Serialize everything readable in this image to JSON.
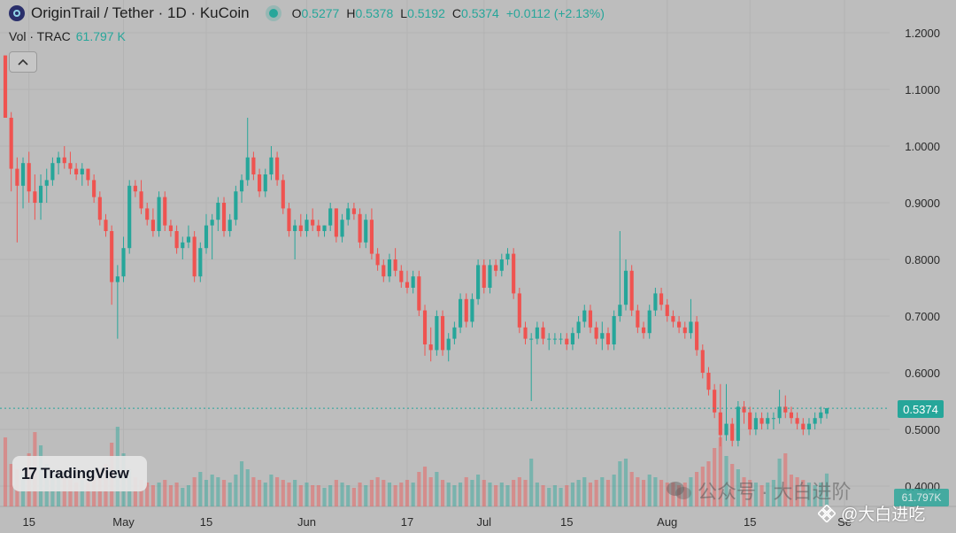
{
  "header": {
    "symbol_title": "OriginTrail / Tether · 1D · KuCoin",
    "ohlc": {
      "o_label": "O",
      "o_value": "0.5277",
      "h_label": "H",
      "h_value": "0.5378",
      "l_label": "L",
      "l_value": "0.5192",
      "c_label": "C",
      "c_value": "0.5374",
      "change": "+0.0112 (+2.13%)"
    }
  },
  "volume_legend": {
    "label": "Vol · TRAC",
    "value": "61.797 K"
  },
  "last_price_label": "0.5374",
  "last_volume_label": "61.797K",
  "logo_text": "TradingView",
  "watermarks": {
    "wechat": "公众号 · 大白进阶",
    "author": "@大白进吃"
  },
  "colors": {
    "up": "#26a69a",
    "down": "#ef5350",
    "background": "#bdbdbd",
    "grid": "#b3b3b3"
  },
  "icons": {
    "collapse": "chevron-up-icon",
    "symbol": "origintrail-logo-icon",
    "wechat": "wechat-icon",
    "logo": "binance-logo-icon"
  },
  "chart_data": {
    "type": "candlestick",
    "y_ticks": [
      "1.2000",
      "1.1000",
      "1.0000",
      "0.9000",
      "0.8000",
      "0.7000",
      "0.6000",
      "0.5000",
      "0.4000"
    ],
    "ylim": [
      0.385,
      1.215
    ],
    "x_ticks": [
      {
        "label": "15",
        "index": 4
      },
      {
        "label": "May",
        "index": 20
      },
      {
        "label": "15",
        "index": 34
      },
      {
        "label": "Jun",
        "index": 51
      },
      {
        "label": "17",
        "index": 68
      },
      {
        "label": "Jul",
        "index": 81
      },
      {
        "label": "15",
        "index": 95
      },
      {
        "label": "Aug",
        "index": 112
      },
      {
        "label": "15",
        "index": 126
      },
      {
        "label": "Se",
        "index": 142
      }
    ],
    "volume_max": 150,
    "candles": [
      [
        1.16,
        1.16,
        1.05,
        1.05,
        130
      ],
      [
        1.05,
        1.06,
        0.92,
        0.96,
        80
      ],
      [
        0.96,
        0.98,
        0.83,
        0.93,
        70
      ],
      [
        0.93,
        0.98,
        0.89,
        0.97,
        60
      ],
      [
        0.97,
        0.99,
        0.9,
        0.92,
        100
      ],
      [
        0.92,
        0.95,
        0.87,
        0.9,
        140
      ],
      [
        0.9,
        0.95,
        0.87,
        0.93,
        115
      ],
      [
        0.93,
        0.96,
        0.9,
        0.94,
        80
      ],
      [
        0.94,
        0.98,
        0.93,
        0.97,
        70
      ],
      [
        0.97,
        0.99,
        0.95,
        0.98,
        60
      ],
      [
        0.98,
        1.0,
        0.96,
        0.97,
        55
      ],
      [
        0.97,
        0.99,
        0.95,
        0.96,
        50
      ],
      [
        0.96,
        0.97,
        0.94,
        0.95,
        45
      ],
      [
        0.95,
        0.97,
        0.93,
        0.96,
        50
      ],
      [
        0.96,
        0.96,
        0.93,
        0.94,
        45
      ],
      [
        0.94,
        0.95,
        0.9,
        0.91,
        55
      ],
      [
        0.91,
        0.92,
        0.86,
        0.87,
        70
      ],
      [
        0.87,
        0.88,
        0.84,
        0.85,
        80
      ],
      [
        0.85,
        0.86,
        0.72,
        0.76,
        120
      ],
      [
        0.76,
        0.79,
        0.66,
        0.77,
        150
      ],
      [
        0.77,
        0.84,
        0.76,
        0.82,
        100
      ],
      [
        0.82,
        0.94,
        0.81,
        0.93,
        70
      ],
      [
        0.93,
        0.94,
        0.91,
        0.92,
        55
      ],
      [
        0.92,
        0.94,
        0.88,
        0.89,
        50
      ],
      [
        0.89,
        0.9,
        0.86,
        0.87,
        45
      ],
      [
        0.87,
        0.89,
        0.84,
        0.85,
        40
      ],
      [
        0.85,
        0.92,
        0.84,
        0.91,
        45
      ],
      [
        0.91,
        0.92,
        0.85,
        0.86,
        50
      ],
      [
        0.86,
        0.87,
        0.84,
        0.85,
        40
      ],
      [
        0.85,
        0.86,
        0.81,
        0.82,
        45
      ],
      [
        0.82,
        0.84,
        0.8,
        0.83,
        35
      ],
      [
        0.83,
        0.86,
        0.82,
        0.84,
        40
      ],
      [
        0.84,
        0.85,
        0.76,
        0.77,
        55
      ],
      [
        0.77,
        0.83,
        0.76,
        0.82,
        65
      ],
      [
        0.82,
        0.88,
        0.81,
        0.86,
        50
      ],
      [
        0.86,
        0.88,
        0.8,
        0.87,
        60
      ],
      [
        0.87,
        0.91,
        0.85,
        0.9,
        55
      ],
      [
        0.9,
        0.91,
        0.84,
        0.85,
        50
      ],
      [
        0.85,
        0.88,
        0.84,
        0.87,
        45
      ],
      [
        0.87,
        0.93,
        0.86,
        0.92,
        60
      ],
      [
        0.92,
        0.95,
        0.9,
        0.94,
        85
      ],
      [
        0.94,
        1.05,
        0.93,
        0.98,
        70
      ],
      [
        0.98,
        0.99,
        0.94,
        0.95,
        55
      ],
      [
        0.95,
        0.96,
        0.91,
        0.92,
        50
      ],
      [
        0.92,
        0.96,
        0.91,
        0.95,
        45
      ],
      [
        0.95,
        1.0,
        0.94,
        0.98,
        60
      ],
      [
        0.98,
        0.99,
        0.93,
        0.94,
        55
      ],
      [
        0.94,
        0.95,
        0.88,
        0.89,
        50
      ],
      [
        0.89,
        0.9,
        0.84,
        0.85,
        45
      ],
      [
        0.85,
        0.87,
        0.8,
        0.86,
        50
      ],
      [
        0.86,
        0.88,
        0.84,
        0.85,
        40
      ],
      [
        0.85,
        0.88,
        0.84,
        0.87,
        45
      ],
      [
        0.87,
        0.89,
        0.85,
        0.86,
        40
      ],
      [
        0.86,
        0.87,
        0.84,
        0.85,
        40
      ],
      [
        0.85,
        0.86,
        0.84,
        0.86,
        35
      ],
      [
        0.86,
        0.9,
        0.85,
        0.89,
        40
      ],
      [
        0.89,
        0.89,
        0.83,
        0.84,
        50
      ],
      [
        0.84,
        0.88,
        0.83,
        0.87,
        45
      ],
      [
        0.87,
        0.9,
        0.86,
        0.89,
        40
      ],
      [
        0.89,
        0.9,
        0.87,
        0.88,
        35
      ],
      [
        0.88,
        0.89,
        0.82,
        0.83,
        45
      ],
      [
        0.83,
        0.88,
        0.82,
        0.87,
        40
      ],
      [
        0.87,
        0.89,
        0.8,
        0.81,
        50
      ],
      [
        0.81,
        0.82,
        0.78,
        0.79,
        55
      ],
      [
        0.79,
        0.8,
        0.76,
        0.77,
        50
      ],
      [
        0.77,
        0.81,
        0.76,
        0.8,
        45
      ],
      [
        0.8,
        0.82,
        0.77,
        0.78,
        40
      ],
      [
        0.78,
        0.79,
        0.75,
        0.76,
        45
      ],
      [
        0.76,
        0.78,
        0.74,
        0.75,
        50
      ],
      [
        0.75,
        0.78,
        0.74,
        0.77,
        45
      ],
      [
        0.77,
        0.78,
        0.7,
        0.71,
        65
      ],
      [
        0.71,
        0.72,
        0.63,
        0.65,
        75
      ],
      [
        0.65,
        0.68,
        0.62,
        0.64,
        55
      ],
      [
        0.64,
        0.71,
        0.63,
        0.7,
        65
      ],
      [
        0.7,
        0.71,
        0.63,
        0.64,
        50
      ],
      [
        0.64,
        0.67,
        0.62,
        0.66,
        45
      ],
      [
        0.66,
        0.69,
        0.65,
        0.68,
        40
      ],
      [
        0.68,
        0.74,
        0.67,
        0.73,
        45
      ],
      [
        0.73,
        0.74,
        0.68,
        0.69,
        55
      ],
      [
        0.69,
        0.74,
        0.68,
        0.73,
        50
      ],
      [
        0.73,
        0.8,
        0.72,
        0.79,
        60
      ],
      [
        0.79,
        0.8,
        0.74,
        0.75,
        50
      ],
      [
        0.75,
        0.8,
        0.74,
        0.79,
        45
      ],
      [
        0.79,
        0.8,
        0.77,
        0.78,
        40
      ],
      [
        0.78,
        0.81,
        0.77,
        0.8,
        45
      ],
      [
        0.8,
        0.82,
        0.79,
        0.81,
        40
      ],
      [
        0.81,
        0.82,
        0.73,
        0.74,
        50
      ],
      [
        0.74,
        0.75,
        0.67,
        0.68,
        55
      ],
      [
        0.68,
        0.69,
        0.65,
        0.66,
        50
      ],
      [
        0.66,
        0.67,
        0.55,
        0.66,
        90
      ],
      [
        0.66,
        0.69,
        0.65,
        0.68,
        45
      ],
      [
        0.68,
        0.69,
        0.65,
        0.66,
        40
      ],
      [
        0.66,
        0.67,
        0.64,
        0.66,
        35
      ],
      [
        0.66,
        0.67,
        0.65,
        0.66,
        40
      ],
      [
        0.66,
        0.67,
        0.65,
        0.66,
        35
      ],
      [
        0.66,
        0.67,
        0.64,
        0.65,
        40
      ],
      [
        0.65,
        0.68,
        0.64,
        0.67,
        45
      ],
      [
        0.67,
        0.7,
        0.66,
        0.69,
        50
      ],
      [
        0.69,
        0.72,
        0.68,
        0.71,
        55
      ],
      [
        0.71,
        0.72,
        0.67,
        0.68,
        45
      ],
      [
        0.68,
        0.69,
        0.65,
        0.66,
        50
      ],
      [
        0.66,
        0.69,
        0.64,
        0.67,
        55
      ],
      [
        0.67,
        0.68,
        0.64,
        0.65,
        50
      ],
      [
        0.65,
        0.71,
        0.64,
        0.7,
        60
      ],
      [
        0.7,
        0.85,
        0.69,
        0.72,
        85
      ],
      [
        0.72,
        0.8,
        0.71,
        0.78,
        90
      ],
      [
        0.78,
        0.79,
        0.7,
        0.71,
        65
      ],
      [
        0.71,
        0.72,
        0.67,
        0.68,
        55
      ],
      [
        0.68,
        0.69,
        0.66,
        0.67,
        50
      ],
      [
        0.67,
        0.72,
        0.66,
        0.71,
        60
      ],
      [
        0.71,
        0.75,
        0.7,
        0.74,
        55
      ],
      [
        0.74,
        0.75,
        0.71,
        0.72,
        50
      ],
      [
        0.72,
        0.73,
        0.69,
        0.7,
        45
      ],
      [
        0.7,
        0.71,
        0.68,
        0.69,
        45
      ],
      [
        0.69,
        0.7,
        0.67,
        0.68,
        40
      ],
      [
        0.68,
        0.69,
        0.66,
        0.67,
        45
      ],
      [
        0.67,
        0.73,
        0.66,
        0.69,
        55
      ],
      [
        0.69,
        0.7,
        0.63,
        0.64,
        65
      ],
      [
        0.64,
        0.65,
        0.59,
        0.6,
        75
      ],
      [
        0.6,
        0.61,
        0.56,
        0.57,
        85
      ],
      [
        0.57,
        0.58,
        0.52,
        0.53,
        110
      ],
      [
        0.53,
        0.58,
        0.47,
        0.49,
        130
      ],
      [
        0.49,
        0.58,
        0.48,
        0.51,
        95
      ],
      [
        0.51,
        0.52,
        0.47,
        0.48,
        80
      ],
      [
        0.48,
        0.55,
        0.47,
        0.54,
        70
      ],
      [
        0.54,
        0.55,
        0.51,
        0.53,
        55
      ],
      [
        0.53,
        0.54,
        0.49,
        0.5,
        50
      ],
      [
        0.5,
        0.53,
        0.49,
        0.52,
        45
      ],
      [
        0.52,
        0.53,
        0.5,
        0.51,
        40
      ],
      [
        0.51,
        0.53,
        0.5,
        0.52,
        45
      ],
      [
        0.52,
        0.53,
        0.5,
        0.52,
        50
      ],
      [
        0.52,
        0.57,
        0.51,
        0.54,
        90
      ],
      [
        0.54,
        0.56,
        0.52,
        0.53,
        100
      ],
      [
        0.53,
        0.54,
        0.51,
        0.52,
        60
      ],
      [
        0.52,
        0.53,
        0.5,
        0.51,
        55
      ],
      [
        0.51,
        0.52,
        0.49,
        0.5,
        50
      ],
      [
        0.5,
        0.52,
        0.49,
        0.51,
        45
      ],
      [
        0.51,
        0.53,
        0.5,
        0.52,
        40
      ],
      [
        0.52,
        0.54,
        0.51,
        0.53,
        45
      ],
      [
        0.5277,
        0.5378,
        0.5192,
        0.5374,
        62
      ]
    ]
  }
}
